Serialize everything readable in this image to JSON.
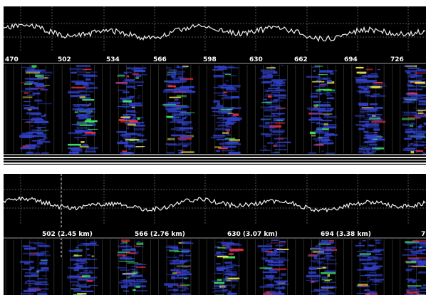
{
  "colors": {
    "background": "#000000",
    "trace": "#f2f2f2",
    "grid": "#8a8a8a",
    "scale_bar": "#000000",
    "divider_white": "#ffffff",
    "spectrogram_blue": "#3040c8",
    "spectrogram_green": "#40e060",
    "spectrogram_red": "#ff3040",
    "spectrogram_yellow": "#f0e040"
  },
  "top_view": {
    "scale_labels": [
      "470",
      "502",
      "534",
      "566",
      "598",
      "630",
      "662",
      "694",
      "726"
    ]
  },
  "bottom_view": {
    "scale_labels": [
      "502 (2.45 km)",
      "566 (2.76 km)",
      "630 (3.07 km)",
      "694 (3.38 km)",
      "7"
    ]
  },
  "icons": {
    "cursor": "vertical-dashed-cursor-icon"
  }
}
